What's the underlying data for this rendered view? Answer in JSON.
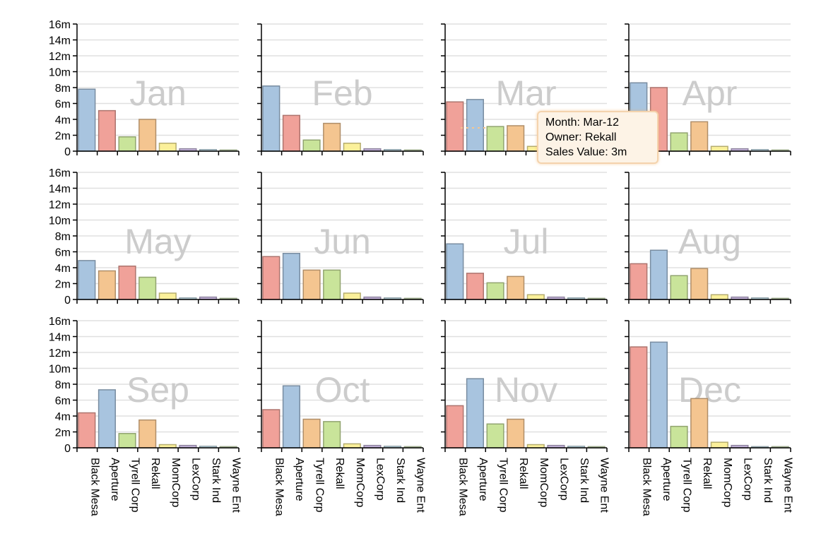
{
  "colors": {
    "Black Mesa": "#a8c4df",
    "Aperture": "#f0a199",
    "Tyrell Corp": "#c9e49a",
    "Rekall": "#f4c590",
    "MomCorp": "#fbf09a",
    "LexCorp": "#c5b4dc",
    "Stark Ind": "#c6dfea",
    "Wayne Ent": "#d8ecc3"
  },
  "chart_data": {
    "type": "bar",
    "layout": "small-multiples",
    "categories": [
      "Black Mesa",
      "Aperture",
      "Tyrell Corp",
      "Rekall",
      "MomCorp",
      "LexCorp",
      "Stark Ind",
      "Wayne Ent"
    ],
    "y_ticks": [
      "0",
      "2m",
      "4m",
      "6m",
      "8m",
      "10m",
      "12m",
      "14m",
      "16m"
    ],
    "ylim": [
      0,
      16
    ],
    "grid": true,
    "panels": [
      {
        "month": "Jan",
        "bars": [
          [
            "Black Mesa",
            7.8
          ],
          [
            "Aperture",
            5.1
          ],
          [
            "Tyrell Corp",
            1.8
          ],
          [
            "Rekall",
            4.0
          ],
          [
            "MomCorp",
            1.0
          ],
          [
            "LexCorp",
            0.3
          ],
          [
            "Stark Ind",
            0.2
          ],
          [
            "Wayne Ent",
            0.15
          ]
        ]
      },
      {
        "month": "Feb",
        "bars": [
          [
            "Black Mesa",
            8.2
          ],
          [
            "Aperture",
            4.5
          ],
          [
            "Tyrell Corp",
            1.4
          ],
          [
            "Rekall",
            3.5
          ],
          [
            "MomCorp",
            1.0
          ],
          [
            "LexCorp",
            0.3
          ],
          [
            "Stark Ind",
            0.2
          ],
          [
            "Wayne Ent",
            0.15
          ]
        ]
      },
      {
        "month": "Mar",
        "bars": [
          [
            "Aperture",
            6.2
          ],
          [
            "Black Mesa",
            6.5
          ],
          [
            "Tyrell Corp",
            3.1
          ],
          [
            "Rekall",
            3.2
          ],
          [
            "MomCorp",
            0.6
          ],
          [
            "LexCorp",
            0.3
          ],
          [
            "Stark Ind",
            0.2
          ],
          [
            "Wayne Ent",
            0.15
          ]
        ]
      },
      {
        "month": "Apr",
        "bars": [
          [
            "Black Mesa",
            8.6
          ],
          [
            "Aperture",
            8.0
          ],
          [
            "Tyrell Corp",
            2.3
          ],
          [
            "Rekall",
            3.7
          ],
          [
            "MomCorp",
            0.6
          ],
          [
            "LexCorp",
            0.3
          ],
          [
            "Stark Ind",
            0.2
          ],
          [
            "Wayne Ent",
            0.15
          ]
        ]
      },
      {
        "month": "May",
        "bars": [
          [
            "Black Mesa",
            4.9
          ],
          [
            "Rekall",
            3.6
          ],
          [
            "Aperture",
            4.2
          ],
          [
            "Tyrell Corp",
            2.8
          ],
          [
            "MomCorp",
            0.8
          ],
          [
            "Stark Ind",
            0.2
          ],
          [
            "LexCorp",
            0.3
          ],
          [
            "Wayne Ent",
            0.15
          ]
        ]
      },
      {
        "month": "Jun",
        "bars": [
          [
            "Aperture",
            5.4
          ],
          [
            "Black Mesa",
            5.8
          ],
          [
            "Rekall",
            3.7
          ],
          [
            "Tyrell Corp",
            3.7
          ],
          [
            "MomCorp",
            0.8
          ],
          [
            "LexCorp",
            0.3
          ],
          [
            "Stark Ind",
            0.2
          ],
          [
            "Wayne Ent",
            0.15
          ]
        ]
      },
      {
        "month": "Jul",
        "bars": [
          [
            "Black Mesa",
            7.0
          ],
          [
            "Aperture",
            3.3
          ],
          [
            "Tyrell Corp",
            2.1
          ],
          [
            "Rekall",
            2.9
          ],
          [
            "MomCorp",
            0.6
          ],
          [
            "LexCorp",
            0.3
          ],
          [
            "Stark Ind",
            0.2
          ],
          [
            "Wayne Ent",
            0.15
          ]
        ]
      },
      {
        "month": "Aug",
        "bars": [
          [
            "Aperture",
            4.5
          ],
          [
            "Black Mesa",
            6.2
          ],
          [
            "Tyrell Corp",
            3.0
          ],
          [
            "Rekall",
            3.9
          ],
          [
            "MomCorp",
            0.6
          ],
          [
            "LexCorp",
            0.3
          ],
          [
            "Stark Ind",
            0.2
          ],
          [
            "Wayne Ent",
            0.15
          ]
        ]
      },
      {
        "month": "Sep",
        "bars": [
          [
            "Aperture",
            4.4
          ],
          [
            "Black Mesa",
            7.3
          ],
          [
            "Tyrell Corp",
            1.8
          ],
          [
            "Rekall",
            3.5
          ],
          [
            "MomCorp",
            0.4
          ],
          [
            "LexCorp",
            0.3
          ],
          [
            "Stark Ind",
            0.2
          ],
          [
            "Wayne Ent",
            0.15
          ]
        ]
      },
      {
        "month": "Oct",
        "bars": [
          [
            "Aperture",
            4.8
          ],
          [
            "Black Mesa",
            7.8
          ],
          [
            "Rekall",
            3.6
          ],
          [
            "Tyrell Corp",
            3.3
          ],
          [
            "MomCorp",
            0.5
          ],
          [
            "LexCorp",
            0.3
          ],
          [
            "Stark Ind",
            0.2
          ],
          [
            "Wayne Ent",
            0.15
          ]
        ]
      },
      {
        "month": "Nov",
        "bars": [
          [
            "Aperture",
            5.3
          ],
          [
            "Black Mesa",
            8.7
          ],
          [
            "Tyrell Corp",
            3.0
          ],
          [
            "Rekall",
            3.6
          ],
          [
            "MomCorp",
            0.4
          ],
          [
            "LexCorp",
            0.3
          ],
          [
            "Stark Ind",
            0.2
          ],
          [
            "Wayne Ent",
            0.15
          ]
        ]
      },
      {
        "month": "Dec",
        "bars": [
          [
            "Aperture",
            12.7
          ],
          [
            "Black Mesa",
            13.3
          ],
          [
            "Tyrell Corp",
            2.7
          ],
          [
            "Rekall",
            6.2
          ],
          [
            "MomCorp",
            0.7
          ],
          [
            "LexCorp",
            0.3
          ],
          [
            "Stark Ind",
            0.15
          ],
          [
            "Wayne Ent",
            0.15
          ]
        ]
      }
    ]
  },
  "tooltip": {
    "month": "Month: Mar-12",
    "owner": "Owner: Rekall",
    "value": "Sales Value: 3m"
  }
}
